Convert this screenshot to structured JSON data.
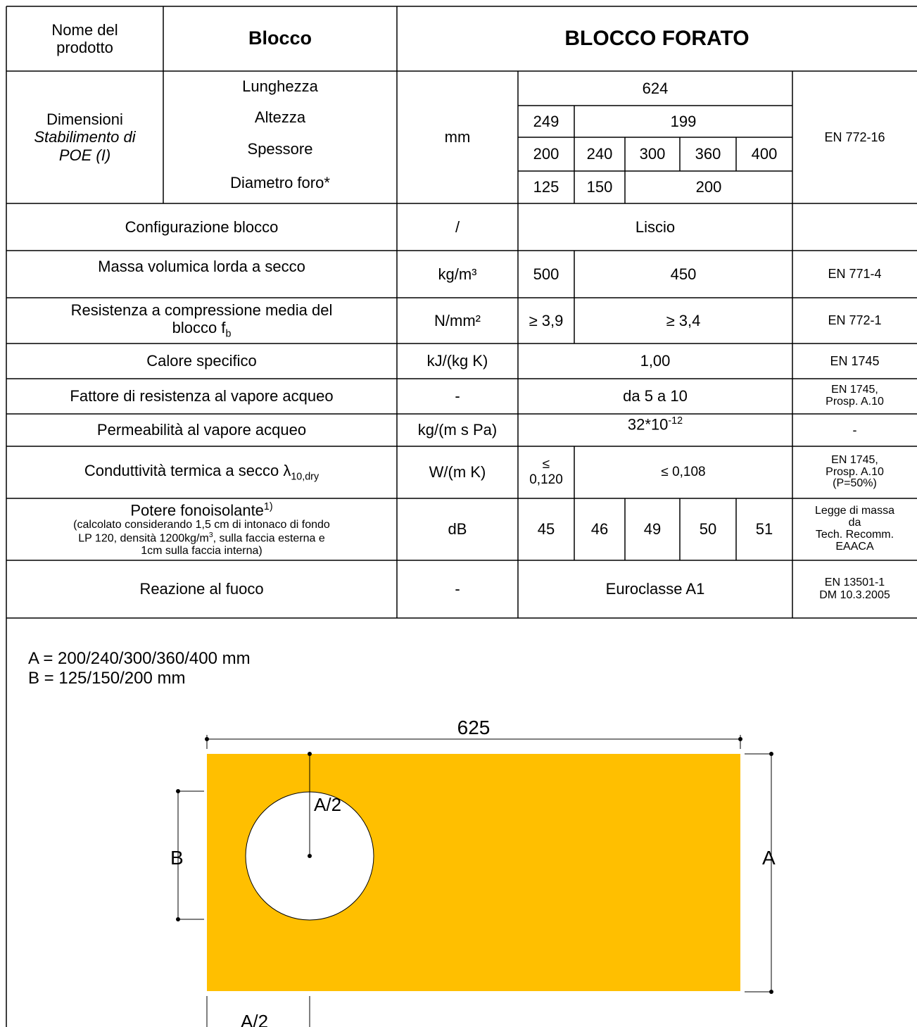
{
  "header": {
    "product_name_label": "Nome del prodotto",
    "block_label": "Blocco",
    "block_title": "BLOCCO FORATO"
  },
  "dimensions": {
    "section_label": "Dimensioni",
    "plant_line1": "Stabilimento di",
    "plant_line2": "POE (I)",
    "labels": [
      "Lunghezza",
      "Altezza",
      "Spessore",
      "Diametro foro*"
    ],
    "unit": "mm",
    "length": "624",
    "height": [
      "249",
      "199"
    ],
    "thickness": [
      "200",
      "240",
      "300",
      "360",
      "400"
    ],
    "hole_diameter": [
      "125",
      "150",
      "200"
    ],
    "standard": "EN 772-16"
  },
  "properties": [
    {
      "name": "Configurazione blocco",
      "unit": "/",
      "values": [
        "Liscio"
      ],
      "standard": ""
    },
    {
      "name": "Massa volumica lorda a secco",
      "unit": "kg/m³",
      "values": [
        "500",
        "450"
      ],
      "standard": "EN 771-4"
    },
    {
      "name": "Resistenza a compressione media del",
      "name2": "blocco f",
      "name_sub": "b",
      "unit": "N/mm²",
      "values": [
        "≥ 3,9",
        "≥ 3,4"
      ],
      "standard": "EN 772-1"
    },
    {
      "name": "Calore specifico",
      "unit": "kJ/(kg K)",
      "values": [
        "1,00"
      ],
      "standard": "EN 1745"
    },
    {
      "name": "Fattore di resistenza al vapore acqueo",
      "unit": "-",
      "values": [
        "da 5 a 10"
      ],
      "standard": "EN 1745,",
      "standard2": "Prosp. A.10"
    },
    {
      "name": "Permeabilità al vapore acqueo",
      "unit": "kg/(m s Pa)",
      "value_base": "32*10",
      "value_exp": "-12",
      "standard": "-"
    },
    {
      "name": "Conduttività termica a secco λ",
      "name_sub": "10,dry",
      "unit": "W/(m K)",
      "values": [
        "≤",
        "0,120",
        "≤ 0,108"
      ],
      "standard": "EN 1745,",
      "standard2": "Prosp. A.10",
      "standard3": "(P=50%)"
    },
    {
      "name": "Potere fonoisolante",
      "name_sup": "1)",
      "note_lines": [
        "(calcolato considerando 1,5 cm di intonaco di fondo",
        "LP 120, densità 1200kg/m",
        "3",
        ", sulla faccia esterna e",
        "1cm sulla faccia interna)"
      ],
      "unit": "dB",
      "values": [
        "45",
        "46",
        "49",
        "50",
        "51"
      ],
      "standard_lines": [
        "Legge di massa",
        "da",
        "Tech. Recomm.",
        "EAACA"
      ]
    },
    {
      "name": "Reazione al fuoco",
      "unit": "-",
      "values": [
        "Euroclasse A1"
      ],
      "standard_lines": [
        "EN 13501-1",
        "DM 10.3.2005"
      ]
    }
  ],
  "legend": {
    "line_a": "A = 200/240/300/360/400 mm",
    "line_b": "B = 125/150/200 mm"
  },
  "drawing": {
    "block_color": "#FFBF00",
    "length_label": "625",
    "label_a": "A",
    "label_b": "B",
    "label_half_a_top": "A/2",
    "label_half_a_bottom": "A/2"
  }
}
